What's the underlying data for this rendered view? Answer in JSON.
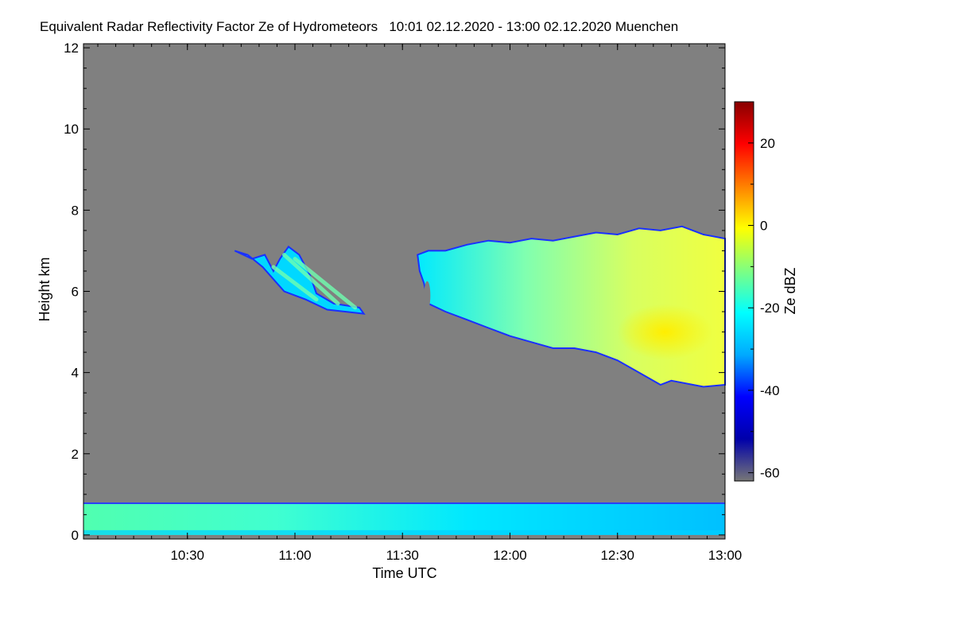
{
  "chart_data": {
    "type": "heatmap",
    "title": "Equivalent Radar Reflectivity Factor Ze of Hydrometeors   10:01 02.12.2020 - 13:00 02.12.2020 Muenchen",
    "xlabel": "Time UTC",
    "ylabel": "Height km",
    "xlim": [
      10.0167,
      13.0
    ],
    "ylim": [
      -0.1,
      12.1
    ],
    "x_ticks": [
      {
        "value": 10.5,
        "label": "10:30"
      },
      {
        "value": 11.0,
        "label": "11:00"
      },
      {
        "value": 11.5,
        "label": "11:30"
      },
      {
        "value": 12.0,
        "label": "12:00"
      },
      {
        "value": 12.5,
        "label": "12:30"
      },
      {
        "value": 13.0,
        "label": "13:00"
      }
    ],
    "y_ticks": [
      {
        "value": 0,
        "label": "0"
      },
      {
        "value": 2,
        "label": "2"
      },
      {
        "value": 4,
        "label": "4"
      },
      {
        "value": 6,
        "label": "6"
      },
      {
        "value": 8,
        "label": "8"
      },
      {
        "value": 10,
        "label": "10"
      },
      {
        "value": 12,
        "label": "12"
      }
    ],
    "colorbar": {
      "label": "Ze dBZ",
      "range": [
        -62,
        30
      ],
      "ticks": [
        {
          "value": 20,
          "label": "20"
        },
        {
          "value": 0,
          "label": "0"
        },
        {
          "value": -20,
          "label": "-20"
        },
        {
          "value": -40,
          "label": "-40"
        },
        {
          "value": -60,
          "label": "-60"
        }
      ],
      "colors": [
        "#777777",
        "#0000aa",
        "#0000ff",
        "#00aaff",
        "#00ffff",
        "#80ff80",
        "#ffff00",
        "#ff8000",
        "#ff0000",
        "#880000"
      ]
    },
    "background_color": "#808080",
    "regions": [
      {
        "name": "boundary-layer",
        "t_start": 10.0167,
        "t_end": 13.0,
        "h_bottom": 0.0,
        "h_top": 0.8,
        "ze_dbz": -20
      },
      {
        "name": "ice-cloud-1",
        "t_start": 10.72,
        "t_end": 11.32,
        "h_bottom": 5.4,
        "h_top": 7.1,
        "ze_dbz": -25
      },
      {
        "name": "ice-cloud-2",
        "t_start": 11.57,
        "t_end": 13.0,
        "h_bottom": 3.7,
        "h_top": 7.6,
        "ze_dbz": -8
      }
    ]
  }
}
